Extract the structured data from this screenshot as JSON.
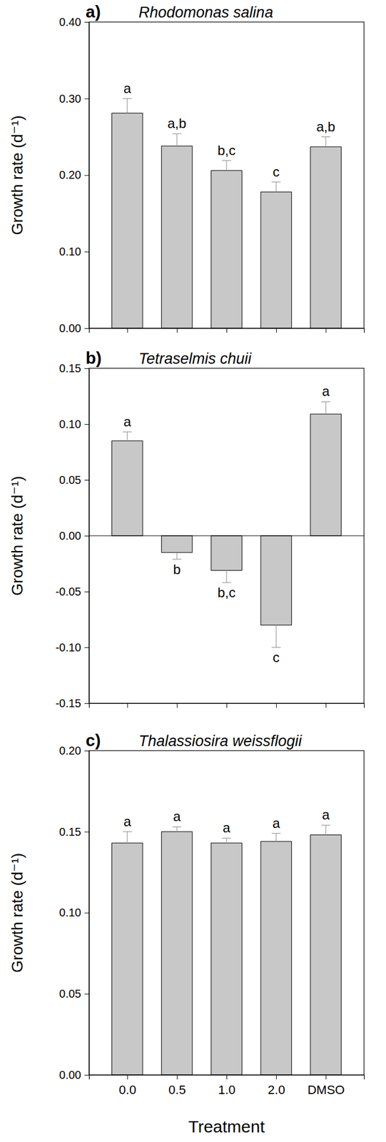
{
  "chart_data": [
    {
      "type": "bar",
      "panel_label": "a)",
      "title": "Rhodomonas salina",
      "y_label": "Growth rate (d⁻¹)",
      "categories": [
        null,
        null,
        null,
        null,
        null
      ],
      "values": [
        0.281,
        0.238,
        0.206,
        0.178,
        0.237
      ],
      "errors": [
        0.019,
        0.016,
        0.013,
        0.013,
        0.013
      ],
      "letters": [
        "a",
        "a,b",
        "b,c",
        "c",
        "a,b"
      ],
      "color": "#c8c8c8",
      "ylim": [
        0,
        0.4
      ],
      "yticks": [
        {
          "value": 0,
          "label": "0.00"
        },
        {
          "value": 0.1,
          "label": "0.10"
        },
        {
          "value": 0.2,
          "label": "0.20"
        },
        {
          "value": 0.3,
          "label": "0.30"
        },
        {
          "value": 0.4,
          "label": "0.40"
        }
      ]
    },
    {
      "type": "bar",
      "panel_label": "b)",
      "title": "Tetraselmis chuii",
      "y_label": "Growth rate (d⁻¹)",
      "categories": [
        null,
        null,
        null,
        null,
        null
      ],
      "values": [
        0.085,
        -0.015,
        -0.031,
        -0.08,
        0.109
      ],
      "errors": [
        0.008,
        0.006,
        0.011,
        0.02,
        0.011
      ],
      "letters": [
        "a",
        "b",
        "b,c",
        "c",
        "a"
      ],
      "color": "#c8c8c8",
      "ylim": [
        -0.15,
        0.15
      ],
      "yticks": [
        {
          "value": -0.15,
          "label": "-0.15"
        },
        {
          "value": -0.1,
          "label": "-0.10"
        },
        {
          "value": -0.05,
          "label": "-0.05"
        },
        {
          "value": 0,
          "label": "0.00"
        },
        {
          "value": 0.05,
          "label": "0.05"
        },
        {
          "value": 0.1,
          "label": "0.10"
        },
        {
          "value": 0.15,
          "label": "0.15"
        }
      ]
    },
    {
      "type": "bar",
      "panel_label": "c)",
      "title": "Thalassiosira weissflogii",
      "y_label": "Growth rate (d⁻¹)",
      "x_label": "Treatment",
      "categories": [
        "0.0",
        "0.5",
        "1.0",
        "2.0",
        "DMSO"
      ],
      "values": [
        0.143,
        0.15,
        0.143,
        0.144,
        0.148
      ],
      "errors": [
        0.007,
        0.003,
        0.003,
        0.005,
        0.006
      ],
      "letters": [
        "a",
        "a",
        "a",
        "a",
        "a"
      ],
      "color": "#c8c8c8",
      "ylim": [
        0,
        0.2
      ],
      "yticks": [
        {
          "value": 0,
          "label": "0.00"
        },
        {
          "value": 0.05,
          "label": "0.05"
        },
        {
          "value": 0.1,
          "label": "0.10"
        },
        {
          "value": 0.15,
          "label": "0.15"
        },
        {
          "value": 0.2,
          "label": "0.20"
        }
      ]
    }
  ]
}
